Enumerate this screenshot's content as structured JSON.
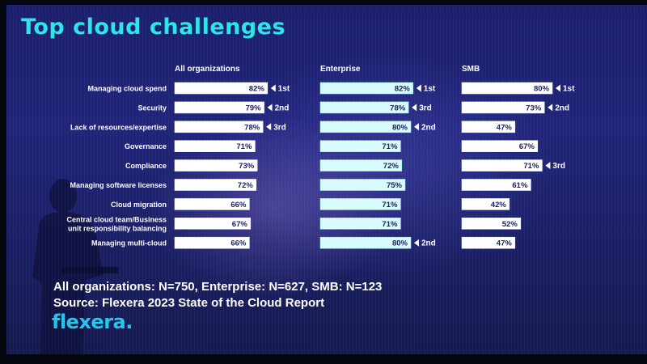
{
  "title": "Top cloud challenges",
  "footnote_n": "All organizations: N=750, Enterprise: N=627, SMB: N=123",
  "footnote_source": "Source: Flexera 2023 State of the Cloud Report",
  "logo": "flexera",
  "colors": {
    "title": "#2ee6ea",
    "bar_fill": "#ffffff",
    "bar_cyan_glow": "#7ff3f5",
    "background": "#1d2270",
    "text": "#ffffff"
  },
  "chart_data": {
    "type": "bar",
    "orientation": "horizontal",
    "categories": [
      "Managing cloud spend",
      "Security",
      "Lack of resources/expertise",
      "Governance",
      "Compliance",
      "Managing software licenses",
      "Cloud migration",
      "Central cloud team/Business unit responsibility balancing",
      "Managing multi-cloud"
    ],
    "category_lines": [
      [
        "Managing cloud spend"
      ],
      [
        "Security"
      ],
      [
        "Lack of resources/expertise"
      ],
      [
        "Governance"
      ],
      [
        "Compliance"
      ],
      [
        "Managing software licenses"
      ],
      [
        "Cloud migration"
      ],
      [
        "Central cloud team/Business",
        "unit responsibility balancing"
      ],
      [
        "Managing multi-cloud"
      ]
    ],
    "series": [
      {
        "name": "All organizations",
        "values": [
          82,
          79,
          78,
          71,
          73,
          72,
          66,
          67,
          66
        ],
        "value_labels": [
          "82%",
          "79%",
          "78%",
          "71%",
          "73%",
          "72%",
          "66%",
          "67%",
          "66%"
        ],
        "ranks": [
          "1st",
          "2nd",
          "3rd",
          "",
          "",
          "",
          "",
          "",
          ""
        ]
      },
      {
        "name": "Enterprise",
        "values": [
          82,
          78,
          80,
          71,
          72,
          75,
          71,
          71,
          80
        ],
        "value_labels": [
          "82%",
          "78%",
          "80%",
          "71%",
          "72%",
          "75%",
          "71%",
          "71%",
          "80%"
        ],
        "ranks": [
          "1st",
          "3rd",
          "2nd",
          "",
          "",
          "",
          "",
          "",
          "2nd"
        ]
      },
      {
        "name": "SMB",
        "values": [
          80,
          73,
          47,
          67,
          71,
          61,
          42,
          52,
          47
        ],
        "value_labels": [
          "80%",
          "73%",
          "47%",
          "67%",
          "71%",
          "61%",
          "42%",
          "52%",
          "47%"
        ],
        "ranks": [
          "1st",
          "2nd",
          "",
          "",
          "3rd",
          "",
          "",
          "",
          ""
        ]
      }
    ],
    "xlim": [
      0,
      100
    ],
    "grid": false,
    "legend": "none"
  }
}
